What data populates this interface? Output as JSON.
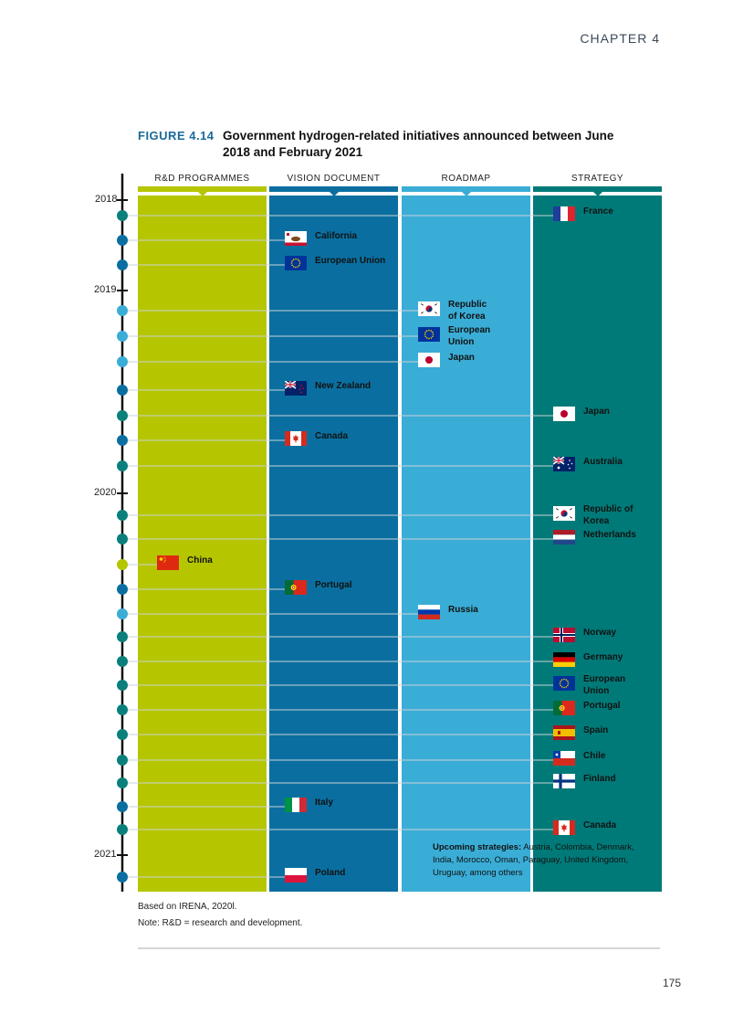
{
  "header": {
    "chapter": "CHAPTER 4",
    "page_number": "175"
  },
  "figure": {
    "number": "FIGURE 4.14",
    "title": "Government hydrogen-related initiatives announced between June 2018 and February 2021"
  },
  "chart_data": {
    "type": "timeline",
    "columns": [
      {
        "key": "rd",
        "label": "R&D PROGRAMMES",
        "color": "#b5c600"
      },
      {
        "key": "vision",
        "label": "VISION DOCUMENT",
        "color": "#0a6fa0"
      },
      {
        "key": "roadmap",
        "label": "ROADMAP",
        "color": "#3aadd6"
      },
      {
        "key": "strategy",
        "label": "STRATEGY",
        "color": "#007a78"
      }
    ],
    "years": [
      "2018",
      "2019",
      "2020",
      "2021"
    ],
    "entries": [
      {
        "label": "France",
        "column": "strategy",
        "flag": "france"
      },
      {
        "label": "California",
        "column": "vision",
        "flag": "california"
      },
      {
        "label": "European Union",
        "column": "vision",
        "flag": "eu"
      },
      {
        "label": "Republic\nof Korea",
        "column": "roadmap",
        "flag": "korea"
      },
      {
        "label": "European\nUnion",
        "column": "roadmap",
        "flag": "eu"
      },
      {
        "label": "Japan",
        "column": "roadmap",
        "flag": "japan"
      },
      {
        "label": "New Zealand",
        "column": "vision",
        "flag": "newzealand"
      },
      {
        "label": "Japan",
        "column": "strategy",
        "flag": "japan"
      },
      {
        "label": "Canada",
        "column": "vision",
        "flag": "canada"
      },
      {
        "label": "Australia",
        "column": "strategy",
        "flag": "australia"
      },
      {
        "label": "Republic of\nKorea",
        "column": "strategy",
        "flag": "korea"
      },
      {
        "label": "Netherlands",
        "column": "strategy",
        "flag": "netherlands"
      },
      {
        "label": "China",
        "column": "rd",
        "flag": "china"
      },
      {
        "label": "Portugal",
        "column": "vision",
        "flag": "portugal"
      },
      {
        "label": "Russia",
        "column": "roadmap",
        "flag": "russia"
      },
      {
        "label": "Norway",
        "column": "strategy",
        "flag": "norway"
      },
      {
        "label": "Germany",
        "column": "strategy",
        "flag": "germany"
      },
      {
        "label": "European\nUnion",
        "column": "strategy",
        "flag": "eu"
      },
      {
        "label": "Portugal",
        "column": "strategy",
        "flag": "portugal"
      },
      {
        "label": "Spain",
        "column": "strategy",
        "flag": "spain"
      },
      {
        "label": "Chile",
        "column": "strategy",
        "flag": "chile"
      },
      {
        "label": "Finland",
        "column": "strategy",
        "flag": "finland"
      },
      {
        "label": "Italy",
        "column": "vision",
        "flag": "italy"
      },
      {
        "label": "Canada",
        "column": "strategy",
        "flag": "canada"
      },
      {
        "label": "Poland",
        "column": "vision",
        "flag": "poland"
      }
    ],
    "upcoming": {
      "label": "Upcoming strategies:",
      "text": "Austria, Colombia, Denmark, India, Morocco, Oman, Paraguay, United Kingdom, Uruguay, among others"
    }
  },
  "footnotes": {
    "source": "Based on IRENA, 2020l.",
    "note": "Note: R&D = research and development."
  }
}
